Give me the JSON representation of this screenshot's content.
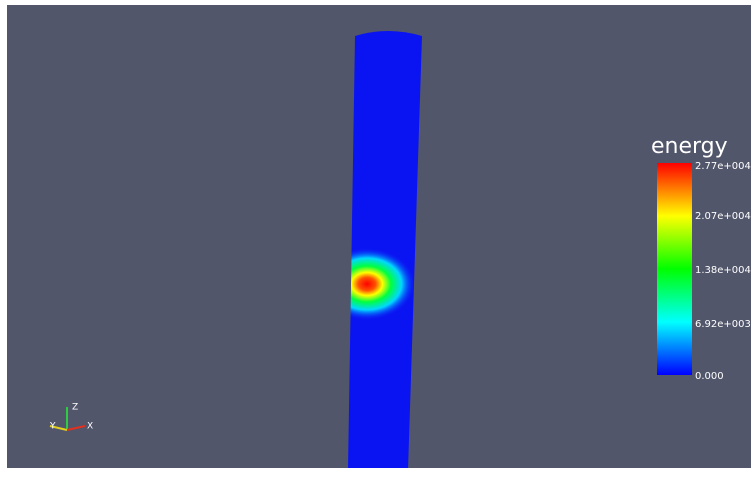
{
  "colorbar": {
    "title": "energy",
    "labels": [
      "2.77e+004",
      "2.07e+004",
      "1.38e+004",
      "6.92e+003",
      "0.000"
    ]
  },
  "axes": {
    "labels": [
      "Z",
      "Y",
      "X"
    ]
  }
}
